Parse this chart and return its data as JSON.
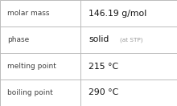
{
  "rows": [
    {
      "label": "molar mass",
      "value": "146.19 g/mol",
      "value2": null
    },
    {
      "label": "phase",
      "value": "solid",
      "value2": "(at STP)"
    },
    {
      "label": "melting point",
      "value": "215 °C",
      "value2": null
    },
    {
      "label": "boiling point",
      "value": "290 °C",
      "value2": null
    }
  ],
  "bg_color": "#ffffff",
  "border_color": "#bbbbbb",
  "label_color": "#404040",
  "value_color": "#111111",
  "value2_color": "#999999",
  "label_fontsize": 6.5,
  "value_fontsize": 7.8,
  "value2_fontsize": 5.2,
  "divider_color": "#bbbbbb",
  "col_split": 0.455,
  "fig_width": 2.2,
  "fig_height": 1.32,
  "dpi": 100
}
